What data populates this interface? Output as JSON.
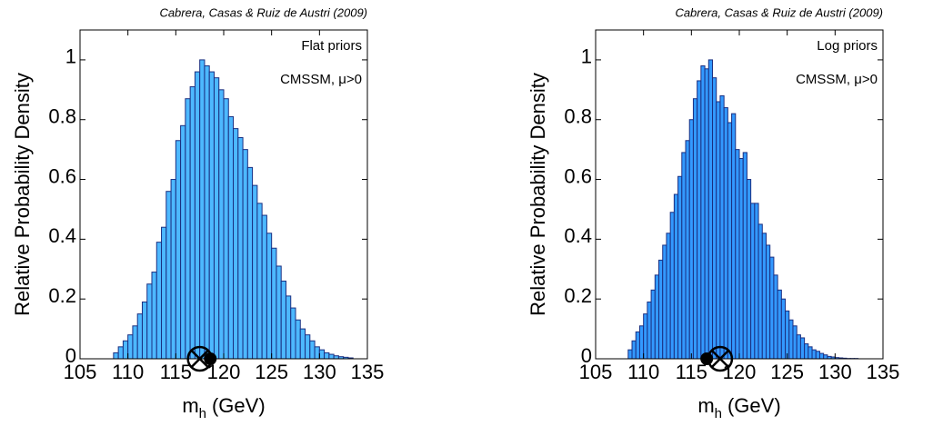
{
  "chart_data": [
    {
      "type": "histogram",
      "title": "Cabrera, Casas & Ruiz de Austri (2009)",
      "annotations": [
        "Flat priors",
        "CMSSM, μ>0"
      ],
      "ylabel": "Relative Probability Density",
      "xlabel": {
        "main": "m",
        "sub": "h",
        "unit": "(GeV)"
      },
      "color": "#4db8ff",
      "edgecolor": "#1a2f80",
      "xlim": [
        105,
        135
      ],
      "xticks": [
        105,
        110,
        115,
        120,
        125,
        130,
        135
      ],
      "ylim": [
        0,
        1.1
      ],
      "yticks": [
        0,
        0.2,
        0.4,
        0.6,
        0.8,
        1
      ],
      "bins": [
        108.5,
        109,
        109.5,
        110,
        110.5,
        111,
        111.5,
        112,
        112.5,
        113,
        113.5,
        114,
        114.5,
        115,
        115.5,
        116,
        116.5,
        117,
        117.5,
        118,
        118.5,
        119,
        119.5,
        120,
        120.5,
        121,
        121.5,
        122,
        122.5,
        123,
        123.5,
        124,
        124.5,
        125,
        125.5,
        126,
        126.5,
        127,
        127.5,
        128,
        128.5,
        129,
        129.5,
        130,
        130.5,
        131,
        131.5,
        132,
        132.5,
        133,
        133.5
      ],
      "values": [
        0.02,
        0.04,
        0.06,
        0.08,
        0.11,
        0.15,
        0.19,
        0.25,
        0.29,
        0.39,
        0.44,
        0.56,
        0.6,
        0.73,
        0.78,
        0.87,
        0.91,
        0.96,
        1.0,
        0.98,
        0.96,
        0.94,
        0.9,
        0.87,
        0.81,
        0.77,
        0.74,
        0.7,
        0.64,
        0.58,
        0.52,
        0.48,
        0.42,
        0.37,
        0.31,
        0.26,
        0.21,
        0.17,
        0.13,
        0.1,
        0.08,
        0.06,
        0.04,
        0.03,
        0.02,
        0.015,
        0.01,
        0.007,
        0.005,
        0.003
      ],
      "markers": [
        {
          "x": 117.5,
          "shape": "circle-cross"
        },
        {
          "x": 118.6,
          "shape": "dot"
        }
      ]
    },
    {
      "type": "histogram",
      "title": "Cabrera, Casas & Ruiz de Austri (2009)",
      "annotations": [
        "Log priors",
        "CMSSM, μ>0"
      ],
      "ylabel": "Relative Probability Density",
      "xlabel": {
        "main": "m",
        "sub": "h",
        "unit": "(GeV)"
      },
      "color": "#3399ff",
      "edgecolor": "#1a2f80",
      "xlim": [
        105,
        135
      ],
      "xticks": [
        105,
        110,
        115,
        120,
        125,
        130,
        135
      ],
      "ylim": [
        0,
        1.1
      ],
      "yticks": [
        0,
        0.2,
        0.4,
        0.6,
        0.8,
        1
      ],
      "bins": [
        108.4,
        108.8,
        109.2,
        109.6,
        110,
        110.4,
        110.8,
        111.2,
        111.6,
        112,
        112.4,
        112.8,
        113.2,
        113.6,
        114,
        114.4,
        114.8,
        115.2,
        115.6,
        116,
        116.4,
        116.8,
        117.2,
        117.6,
        118,
        118.4,
        118.8,
        119.2,
        119.6,
        120,
        120.4,
        120.8,
        121.2,
        121.6,
        122,
        122.4,
        122.8,
        123.2,
        123.6,
        124,
        124.4,
        124.8,
        125.2,
        125.6,
        126,
        126.4,
        126.8,
        127.2,
        127.6,
        128,
        128.4,
        128.8,
        129.2,
        129.6,
        130,
        130.4,
        130.8,
        131.2,
        131.6,
        132,
        132.4
      ],
      "values": [
        0.03,
        0.06,
        0.09,
        0.11,
        0.15,
        0.19,
        0.23,
        0.28,
        0.33,
        0.38,
        0.42,
        0.49,
        0.55,
        0.61,
        0.69,
        0.73,
        0.8,
        0.87,
        0.93,
        0.98,
        0.97,
        1.0,
        0.94,
        0.86,
        0.88,
        0.84,
        0.79,
        0.82,
        0.7,
        0.67,
        0.69,
        0.6,
        0.52,
        0.52,
        0.45,
        0.42,
        0.38,
        0.34,
        0.28,
        0.23,
        0.2,
        0.16,
        0.13,
        0.11,
        0.08,
        0.07,
        0.05,
        0.04,
        0.03,
        0.025,
        0.018,
        0.013,
        0.008,
        0.006,
        0.004,
        0.003,
        0.002,
        0.001,
        0.001,
        0.001
      ],
      "markers": [
        {
          "x": 116.6,
          "shape": "dot"
        },
        {
          "x": 118,
          "shape": "circle-cross"
        }
      ]
    }
  ]
}
